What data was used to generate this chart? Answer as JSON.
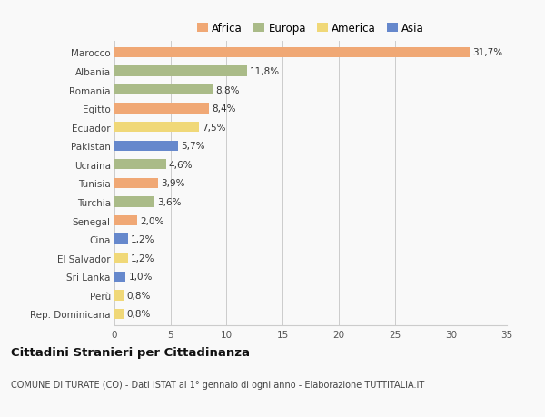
{
  "categories": [
    "Marocco",
    "Albania",
    "Romania",
    "Egitto",
    "Ecuador",
    "Pakistan",
    "Ucraina",
    "Tunisia",
    "Turchia",
    "Senegal",
    "Cina",
    "El Salvador",
    "Sri Lanka",
    "Perù",
    "Rep. Dominicana"
  ],
  "values": [
    31.7,
    11.8,
    8.8,
    8.4,
    7.5,
    5.7,
    4.6,
    3.9,
    3.6,
    2.0,
    1.2,
    1.2,
    1.0,
    0.8,
    0.8
  ],
  "labels": [
    "31,7%",
    "11,8%",
    "8,8%",
    "8,4%",
    "7,5%",
    "5,7%",
    "4,6%",
    "3,9%",
    "3,6%",
    "2,0%",
    "1,2%",
    "1,2%",
    "1,0%",
    "0,8%",
    "0,8%"
  ],
  "continents": [
    "Africa",
    "Europa",
    "Europa",
    "Africa",
    "America",
    "Asia",
    "Europa",
    "Africa",
    "Europa",
    "Africa",
    "Asia",
    "America",
    "Asia",
    "America",
    "America"
  ],
  "continent_colors": {
    "Africa": "#F0A875",
    "Europa": "#AABB88",
    "America": "#F0D878",
    "Asia": "#6688CC"
  },
  "legend_order": [
    "Africa",
    "Europa",
    "America",
    "Asia"
  ],
  "title": "Cittadini Stranieri per Cittadinanza",
  "subtitle": "COMUNE DI TURATE (CO) - Dati ISTAT al 1° gennaio di ogni anno - Elaborazione TUTTITALIA.IT",
  "xlim": [
    0,
    35
  ],
  "xticks": [
    0,
    5,
    10,
    15,
    20,
    25,
    30,
    35
  ],
  "bg_color": "#f9f9f9",
  "bar_height": 0.55,
  "grid_color": "#cccccc",
  "label_fontsize": 7.5,
  "tick_fontsize": 7.5,
  "title_fontsize": 9.5,
  "subtitle_fontsize": 7.0
}
